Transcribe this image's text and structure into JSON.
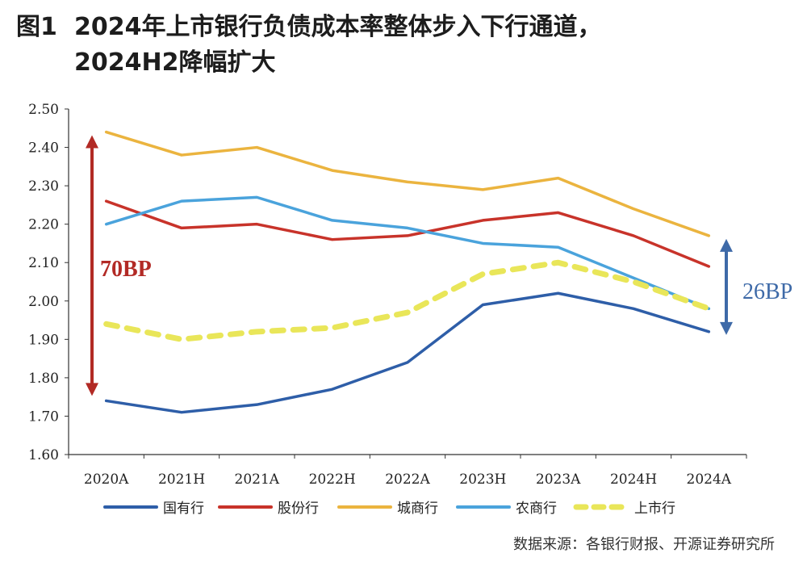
{
  "figure": {
    "label": "图1",
    "title_line1": "2024年上市银行负债成本率整体步入下行通道，",
    "title_line2": "2024H2降幅扩大"
  },
  "source": "数据来源：各银行财报、开源证券研究所",
  "annotations": {
    "left": {
      "text": "70BP",
      "color": "#b22a25"
    },
    "right": {
      "text": "26BP",
      "color": "#3e6aa8"
    }
  },
  "chart_data": {
    "type": "line",
    "categories": [
      "2020A",
      "2021H",
      "2021A",
      "2022H",
      "2022A",
      "2023H",
      "2023A",
      "2024H",
      "2024A"
    ],
    "ylim": [
      1.6,
      2.5
    ],
    "yticks": [
      "1.60",
      "1.70",
      "1.80",
      "1.90",
      "2.00",
      "2.10",
      "2.20",
      "2.30",
      "2.40",
      "2.50"
    ],
    "grid": false,
    "legend_position": "bottom",
    "series": [
      {
        "name": "国有行",
        "color": "#2e5ea8",
        "dashed": false,
        "values": [
          1.74,
          1.71,
          1.73,
          1.77,
          1.84,
          1.99,
          2.02,
          1.98,
          1.92
        ]
      },
      {
        "name": "股份行",
        "color": "#c8332a",
        "dashed": false,
        "values": [
          2.26,
          2.19,
          2.2,
          2.16,
          2.17,
          2.21,
          2.23,
          2.17,
          2.09
        ]
      },
      {
        "name": "城商行",
        "color": "#ebb43f",
        "dashed": false,
        "values": [
          2.44,
          2.38,
          2.4,
          2.34,
          2.31,
          2.29,
          2.32,
          2.24,
          2.17
        ]
      },
      {
        "name": "农商行",
        "color": "#4aa3dc",
        "dashed": false,
        "values": [
          2.2,
          2.26,
          2.27,
          2.21,
          2.19,
          2.15,
          2.14,
          2.06,
          1.98
        ]
      },
      {
        "name": "上市行",
        "color": "#e9e659",
        "dashed": true,
        "values": [
          1.94,
          1.9,
          1.92,
          1.93,
          1.97,
          2.07,
          2.1,
          2.05,
          1.98
        ]
      }
    ]
  }
}
